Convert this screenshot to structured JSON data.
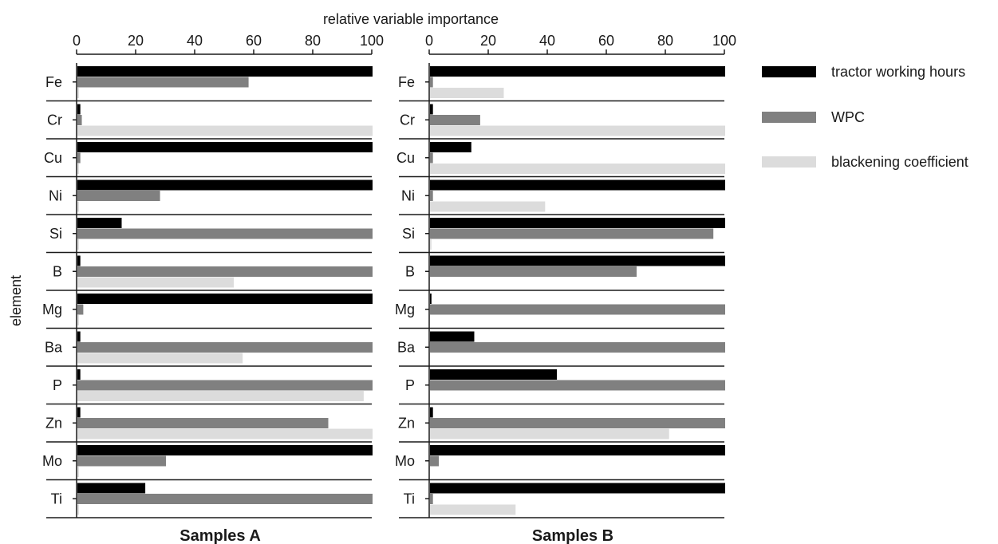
{
  "chart_data": {
    "type": "bar",
    "orientation": "horizontal",
    "xlabel": "relative variable importance",
    "ylabel": "element",
    "xlim": [
      0,
      100
    ],
    "xticks": [
      "0",
      "20",
      "40",
      "60",
      "80",
      "100"
    ],
    "categories": [
      "Fe",
      "Cr",
      "Cu",
      "Ni",
      "Si",
      "B",
      "Mg",
      "Ba",
      "P",
      "Zn",
      "Mo",
      "Ti"
    ],
    "legend": {
      "placement": "right",
      "entries": [
        {
          "name": "tractor working hours",
          "color": "#000000"
        },
        {
          "name": "WPC",
          "color": "#808080"
        },
        {
          "name": "blackening coefficient",
          "color": "#dcdcdc"
        }
      ]
    },
    "panels": [
      {
        "title": "Samples A",
        "series": [
          {
            "name": "tractor working hours",
            "values": [
              100,
              1,
              100,
              100,
              15,
              1,
              100,
              1,
              1,
              1,
              100,
              23
            ]
          },
          {
            "name": "WPC",
            "values": [
              58,
              1.5,
              1,
              28,
              100,
              100,
              2,
              100,
              100,
              85,
              30,
              100
            ]
          },
          {
            "name": "blackening coefficient",
            "values": [
              0.5,
              100,
              0.5,
              0.5,
              0.5,
              53,
              0.5,
              56,
              97,
              100,
              0.5,
              0.5
            ]
          }
        ]
      },
      {
        "title": "Samples B",
        "series": [
          {
            "name": "tractor working hours",
            "values": [
              100,
              1,
              14,
              100,
              100,
              100,
              0.5,
              15,
              43,
              1,
              100,
              100
            ]
          },
          {
            "name": "WPC",
            "values": [
              1,
              17,
              1,
              1,
              96,
              70,
              100,
              100,
              100,
              100,
              3,
              1
            ]
          },
          {
            "name": "blackening coefficient",
            "values": [
              25,
              100,
              100,
              39,
              0.5,
              0,
              0,
              0,
              0,
              81,
              0,
              29
            ]
          }
        ]
      }
    ]
  }
}
